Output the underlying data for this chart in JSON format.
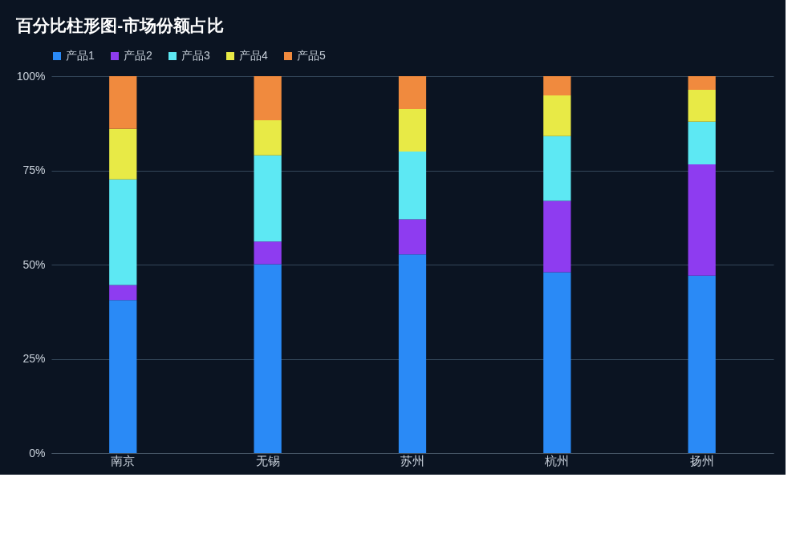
{
  "chart_data": {
    "type": "bar",
    "title": "百分比柱形图-市场份额占比",
    "stacked": true,
    "categories": [
      "南京",
      "无锡",
      "苏州",
      "杭州",
      "扬州"
    ],
    "series": [
      {
        "name": "产品1",
        "color": "#2a8af6",
        "values": [
          40.6,
          50.1,
          52.7,
          48.0,
          47.1
        ]
      },
      {
        "name": "产品2",
        "color": "#8e3cf0",
        "values": [
          4.0,
          6.0,
          9.3,
          18.9,
          29.5
        ]
      },
      {
        "name": "产品3",
        "color": "#5de8f3",
        "values": [
          28.0,
          22.9,
          18.0,
          17.2,
          11.3
        ]
      },
      {
        "name": "产品4",
        "color": "#e8ea46",
        "values": [
          13.4,
          9.3,
          11.3,
          10.8,
          8.5
        ]
      },
      {
        "name": "产品5",
        "color": "#f08a3e",
        "values": [
          14.0,
          11.7,
          8.7,
          5.1,
          3.6
        ]
      }
    ],
    "ylim": [
      0,
      100
    ],
    "yticks": [
      {
        "value": 0,
        "label": "0%"
      },
      {
        "value": 25,
        "label": "25%"
      },
      {
        "value": 50,
        "label": "50%"
      },
      {
        "value": 75,
        "label": "75%"
      },
      {
        "value": 100,
        "label": "100%"
      }
    ],
    "grid": "y",
    "legend": "top"
  }
}
